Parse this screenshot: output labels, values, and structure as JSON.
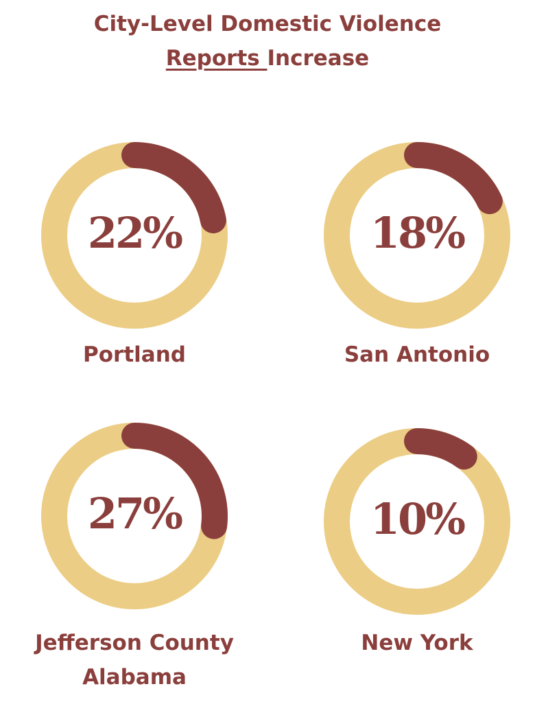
{
  "title": {
    "line1": "City-Level Domestic Violence",
    "underlined": "Reports ",
    "rest": "Increase"
  },
  "chart_data": [
    {
      "type": "donut",
      "label": "Portland",
      "value": 22,
      "value_label": "22%",
      "range": [
        0,
        100
      ],
      "color": "#8b3f3c",
      "track_color": "#eccd85"
    },
    {
      "type": "donut",
      "label": "San Antonio",
      "value": 18,
      "value_label": "18%",
      "range": [
        0,
        100
      ],
      "color": "#8b3f3c",
      "track_color": "#eccd85"
    },
    {
      "type": "donut",
      "label": "Jefferson County Alabama",
      "value": 27,
      "value_label": "27%",
      "range": [
        0,
        100
      ],
      "color": "#8b3f3c",
      "track_color": "#eccd85"
    },
    {
      "type": "donut",
      "label": "New York",
      "value": 10,
      "value_label": "10%",
      "range": [
        0,
        100
      ],
      "color": "#8b3f3c",
      "track_color": "#eccd85"
    }
  ]
}
